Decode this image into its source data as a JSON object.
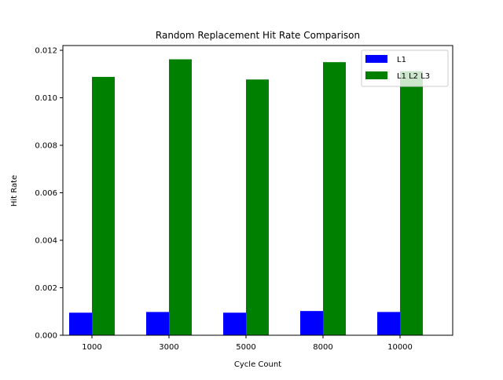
{
  "chart_data": {
    "type": "bar",
    "title": "Random Replacement Hit Rate Comparison",
    "xlabel": "Cycle Count",
    "ylabel": "Hit Rate",
    "categories": [
      "1000",
      "3000",
      "5000",
      "8000",
      "10000"
    ],
    "series": [
      {
        "name": "L1",
        "color": "#0000ff",
        "values": [
          0.00095,
          0.00098,
          0.00095,
          0.00102,
          0.00098
        ]
      },
      {
        "name": "L1 L2 L3",
        "color": "#008000",
        "values": [
          0.01088,
          0.01162,
          0.01077,
          0.0115,
          0.01112
        ]
      }
    ],
    "ylim": [
      0,
      0.0122
    ],
    "yticks": [
      "0.000",
      "0.002",
      "0.004",
      "0.006",
      "0.008",
      "0.010",
      "0.012"
    ],
    "grid": false,
    "legend_position": "top-right"
  }
}
